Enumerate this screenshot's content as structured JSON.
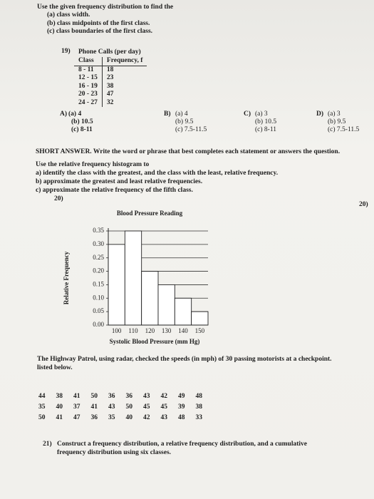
{
  "instructions": {
    "lead": "Use the given frequency distribution to find the",
    "items": [
      "(a) class width.",
      "(b) class midpoints of the first class.",
      "(c) class boundaries of the first class."
    ]
  },
  "q19": {
    "number": "19)",
    "title": "Phone Calls (per day)",
    "table": {
      "headers": [
        "Class",
        "Frequency, f"
      ],
      "rows": [
        [
          "8 - 11",
          "18"
        ],
        [
          "12 - 15",
          "23"
        ],
        [
          "16 - 19",
          "38"
        ],
        [
          "20 - 23",
          "47"
        ],
        [
          "24 - 27",
          "32"
        ]
      ]
    },
    "options": [
      {
        "letter": "A)",
        "lines": [
          "(a) 4",
          "(b) 10.5",
          "(c) 8-11"
        ]
      },
      {
        "letter": "B)",
        "lines": [
          "(a) 4",
          "(b) 9.5",
          "(c) 7.5-11.5"
        ]
      },
      {
        "letter": "C)",
        "lines": [
          "(a) 3",
          "(b) 10.5",
          "(c) 8-11"
        ]
      },
      {
        "letter": "D)",
        "lines": [
          "(a) 3",
          "(b) 9.5",
          "(c) 7.5-11.5"
        ]
      }
    ]
  },
  "short_answer": {
    "heading": "SHORT ANSWER.",
    "text": "Write the word or phrase that best completes each statement or answers the question."
  },
  "q20": {
    "number": "20)",
    "intro": "Use the relative frequency histogram to",
    "items": [
      "a) identify the class with the greatest, and the class with the least, relative frequency.",
      "b) approximate the greatest and least relative frequencies.",
      "c) approximate the relative frequency of the fifth class."
    ]
  },
  "chart_data": {
    "type": "bar",
    "title": "Blood Pressure Reading",
    "x_label": "Systolic Blood Pressure (mm Hg)",
    "y_label": "Relative Frequency",
    "categories": [
      "100",
      "110",
      "120",
      "130",
      "140",
      "150"
    ],
    "values": [
      0.3,
      0.35,
      0.2,
      0.15,
      0.1,
      0.05
    ],
    "color": "#ffffff",
    "ylim": [
      0,
      0.35
    ],
    "yticks": [
      {
        "value": 0,
        "label": "0.00"
      },
      0.05,
      {
        "value": 0.1,
        "label": "0.10"
      },
      0.15,
      {
        "value": 0.2,
        "label": "0.20"
      },
      0.25,
      {
        "value": 0.3,
        "label": "0.30"
      },
      0.35
    ],
    "grid": true
  },
  "q21": {
    "intro_lines": [
      "The Highway Patrol, using radar, checked the speeds (in mph) of 30 passing motorists at a checkpoint.",
      "listed below."
    ],
    "speeds": [
      [
        44,
        38,
        41,
        50,
        36,
        36,
        43,
        42,
        49,
        48
      ],
      [
        35,
        40,
        37,
        41,
        43,
        50,
        45,
        45,
        39,
        38
      ],
      [
        50,
        41,
        47,
        36,
        35,
        40,
        42,
        43,
        48,
        33
      ]
    ],
    "number": "21)",
    "lines": [
      "Construct a frequency distribution, a relative frequency distribution, and a cumulative",
      "frequency distribution using six classes."
    ]
  }
}
